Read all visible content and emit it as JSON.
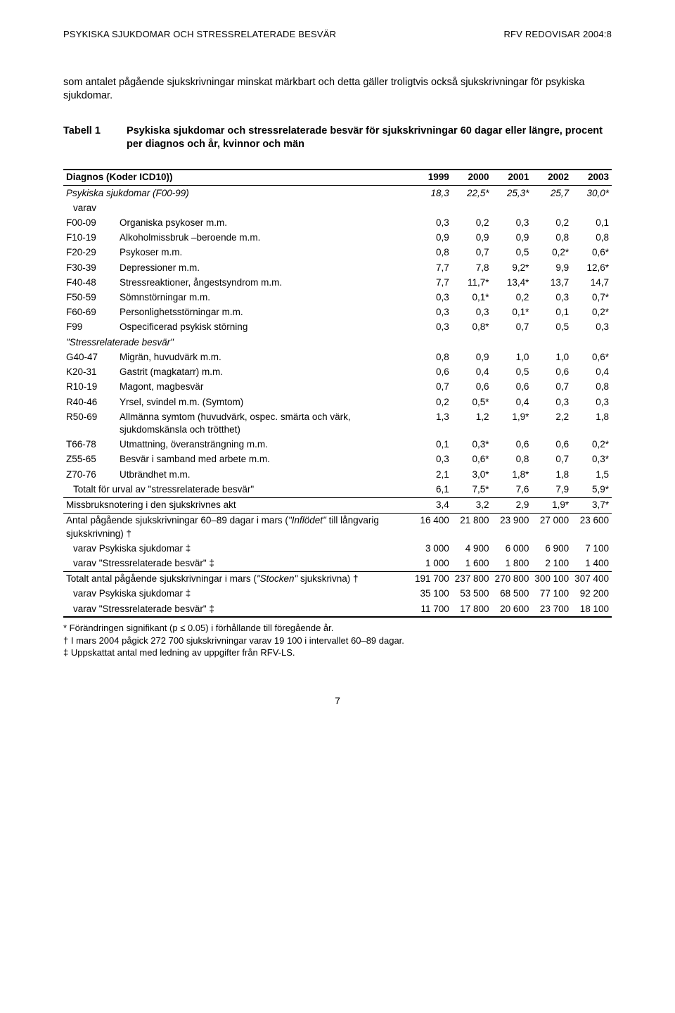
{
  "header": {
    "left": "PSYKISKA SJUKDOMAR OCH STRESSRELATERADE BESVÄR",
    "right": "RFV REDOVISAR 2004:8"
  },
  "intro": "som antalet pågående sjukskrivningar minskat märkbart och detta gäller troligtvis också sjukskrivningar för psykiska sjukdomar.",
  "tabell": {
    "label": "Tabell 1",
    "title": "Psykiska sjukdomar och stressrelaterade besvär för sjukskrivningar 60 dagar eller längre, procent per diagnos och år, kvinnor och män"
  },
  "table": {
    "head_diag": "Diagnos (Koder ICD10))",
    "years": [
      "1999",
      "2000",
      "2001",
      "2002",
      "2003"
    ],
    "section1_label": "Psykiska sjukdomar (F00-99)",
    "section1_values": [
      "18,3",
      "22,5*",
      "25,3*",
      "25,7",
      "30,0*"
    ],
    "varav": "varav",
    "f_rows": [
      {
        "code": "F00-09",
        "label": "Organiska psykoser m.m.",
        "v": [
          "0,3",
          "0,2",
          "0,3",
          "0,2",
          "0,1"
        ]
      },
      {
        "code": "F10-19",
        "label": "Alkoholmissbruk –beroende m.m.",
        "v": [
          "0,9",
          "0,9",
          "0,9",
          "0,8",
          "0,8"
        ]
      },
      {
        "code": "F20-29",
        "label": "Psykoser m.m.",
        "v": [
          "0,8",
          "0,7",
          "0,5",
          "0,2*",
          "0,6*"
        ]
      },
      {
        "code": "F30-39",
        "label": "Depressioner m.m.",
        "v": [
          "7,7",
          "7,8",
          "9,2*",
          "9,9",
          "12,6*"
        ]
      },
      {
        "code": "F40-48",
        "label": "Stressreaktioner, ångestsyndrom m.m.",
        "v": [
          "7,7",
          "11,7*",
          "13,4*",
          "13,7",
          "14,7"
        ]
      },
      {
        "code": "F50-59",
        "label": "Sömnstörningar m.m.",
        "v": [
          "0,3",
          "0,1*",
          "0,2",
          "0,3",
          "0,7*"
        ]
      },
      {
        "code": "F60-69",
        "label": "Personlighetsstörningar m.m.",
        "v": [
          "0,3",
          "0,3",
          "0,1*",
          "0,1",
          "0,2*"
        ]
      },
      {
        "code": "F99",
        "label": "Ospecificerad psykisk störning",
        "v": [
          "0,3",
          "0,8*",
          "0,7",
          "0,5",
          "0,3"
        ]
      }
    ],
    "section2_label": "\"Stressrelaterade besvär\"",
    "s_rows": [
      {
        "code": "G40-47",
        "label": "Migrän, huvudvärk m.m.",
        "v": [
          "0,8",
          "0,9",
          "1,0",
          "1,0",
          "0,6*"
        ]
      },
      {
        "code": "K20-31",
        "label": "Gastrit (magkatarr) m.m.",
        "v": [
          "0,6",
          "0,4",
          "0,5",
          "0,6",
          "0,4"
        ]
      },
      {
        "code": "R10-19",
        "label": "Magont, magbesvär",
        "v": [
          "0,7",
          "0,6",
          "0,6",
          "0,7",
          "0,8"
        ]
      },
      {
        "code": "R40-46",
        "label": "Yrsel, svindel m.m. (Symtom)",
        "v": [
          "0,2",
          "0,5*",
          "0,4",
          "0,3",
          "0,3"
        ]
      },
      {
        "code": "R50-69",
        "label": "Allmänna symtom (huvudvärk, ospec. smärta och värk, sjukdomskänsla och trötthet)",
        "v": [
          "1,3",
          "1,2",
          "1,9*",
          "2,2",
          "1,8"
        ]
      },
      {
        "code": "T66-78",
        "label": "Utmattning, överansträngning m.m.",
        "v": [
          "0,1",
          "0,3*",
          "0,6",
          "0,6",
          "0,2*"
        ]
      },
      {
        "code": "Z55-65",
        "label": "Besvär i samband med arbete m.m.",
        "v": [
          "0,3",
          "0,6*",
          "0,8",
          "0,7",
          "0,3*"
        ]
      },
      {
        "code": "Z70-76",
        "label": "Utbrändhet m.m.",
        "v": [
          "2,1",
          "3,0*",
          "1,8*",
          "1,8",
          "1,5"
        ]
      }
    ],
    "totals1": {
      "label": "Totalt för urval av \"stressrelaterade besvär\"",
      "v": [
        "6,1",
        "7,5*",
        "7,6",
        "7,9",
        "5,9*"
      ]
    },
    "missbruk": {
      "label": "Missbruksnotering i den sjukskrivnes akt",
      "v": [
        "3,4",
        "3,2",
        "2,9",
        "1,9*",
        "3,7*"
      ]
    },
    "antal_block_label": "Antal pågående sjukskrivningar 60–89 dagar i mars (\"Inflödet\" till långvarig sjukskrivning) †",
    "antal_block_v": [
      "16 400",
      "21 800",
      "23 900",
      "27 000",
      "23 600"
    ],
    "antal_sub": [
      {
        "label": "varav Psykiska sjukdomar ‡",
        "v": [
          "3 000",
          "4 900",
          "6 000",
          "6 900",
          "7 100"
        ]
      },
      {
        "label": "varav \"Stressrelaterade besvär\" ‡",
        "v": [
          "1 000",
          "1 600",
          "1 800",
          "2 100",
          "1 400"
        ]
      }
    ],
    "totalt_block_label": "Totalt antal pågående sjukskrivningar i mars (\"Stocken\" sjukskrivna) †",
    "totalt_block_v": [
      "191 700",
      "237 800",
      "270 800",
      "300 100",
      "307 400"
    ],
    "totalt_sub": [
      {
        "label": "varav Psykiska sjukdomar ‡",
        "v": [
          "35 100",
          "53 500",
          "68 500",
          "77 100",
          "92 200"
        ]
      },
      {
        "label": "varav \"Stressrelaterade besvär\" ‡",
        "v": [
          "11 700",
          "17 800",
          "20 600",
          "23 700",
          "18 100"
        ]
      }
    ]
  },
  "footnotes": [
    "* Förändringen signifikant (p ≤ 0.05) i förhållande till föregående år.",
    "† I mars 2004 pågick 272 700 sjukskrivningar varav 19 100 i intervallet 60–89 dagar.",
    "‡ Uppskattat antal med ledning av uppgifter från RFV-LS."
  ],
  "pagenum": "7"
}
